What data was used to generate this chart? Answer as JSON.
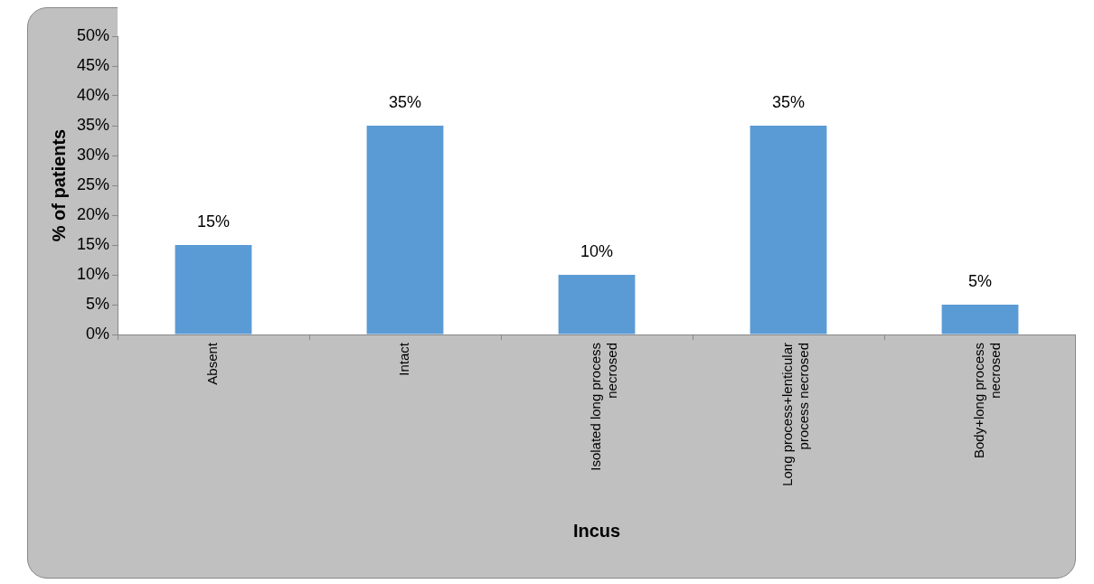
{
  "chart_data": {
    "type": "bar",
    "xlabel": "Incus",
    "ylabel": "% of patients",
    "categories": [
      "Absent",
      "Intact",
      "Isolated long process necrosed",
      "Long process+lenticular process necrosed",
      "Body+long process necrosed"
    ],
    "values": [
      15,
      35,
      10,
      35,
      5
    ],
    "color": "#5b9bd5",
    "value_labels": [
      "15%",
      "35%",
      "10%",
      "35%",
      "5%"
    ],
    "ylim": [
      0,
      50
    ],
    "yticks": [
      {
        "value": 0,
        "label": "0%"
      },
      {
        "value": 5,
        "label": "5%"
      },
      {
        "value": 10,
        "label": "10%"
      },
      {
        "value": 15,
        "label": "15%"
      },
      {
        "value": 20,
        "label": "20%"
      },
      {
        "value": 25,
        "label": "25%"
      },
      {
        "value": 30,
        "label": "30%"
      },
      {
        "value": 35,
        "label": "35%"
      },
      {
        "value": 40,
        "label": "40%"
      },
      {
        "value": 45,
        "label": "45%"
      },
      {
        "value": 50,
        "label": "50%"
      }
    ],
    "grid": false,
    "legend": false
  }
}
